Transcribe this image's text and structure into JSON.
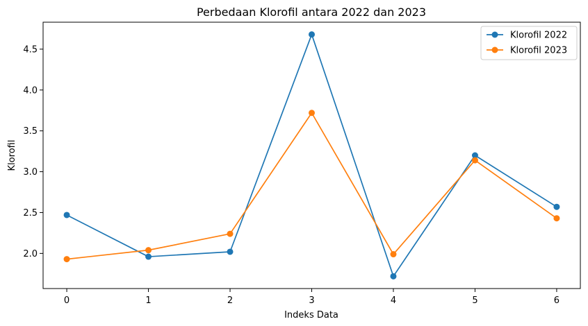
{
  "chart_data": {
    "type": "line",
    "title": "Perbedaan Klorofil antara 2022 dan 2023",
    "xlabel": "Indeks Data",
    "ylabel": "Klorofil",
    "x": [
      0,
      1,
      2,
      3,
      4,
      5,
      6
    ],
    "xticks": [
      "0",
      "1",
      "2",
      "3",
      "4",
      "5",
      "6"
    ],
    "yticks": [
      "2.0",
      "2.5",
      "3.0",
      "3.5",
      "4.0",
      "4.5"
    ],
    "xlim": [
      -0.29,
      6.29
    ],
    "ylim": [
      1.57,
      4.83
    ],
    "grid": false,
    "legend_position": "top-right",
    "series": [
      {
        "name": "Klorofil 2022",
        "color": "#1f77b4",
        "marker": "circle",
        "values": [
          2.47,
          1.96,
          2.02,
          4.68,
          1.72,
          3.2,
          2.57
        ]
      },
      {
        "name": "Klorofil 2023",
        "color": "#ff7f0e",
        "marker": "circle",
        "values": [
          1.93,
          2.04,
          2.24,
          3.72,
          1.99,
          3.14,
          2.43
        ]
      }
    ]
  }
}
